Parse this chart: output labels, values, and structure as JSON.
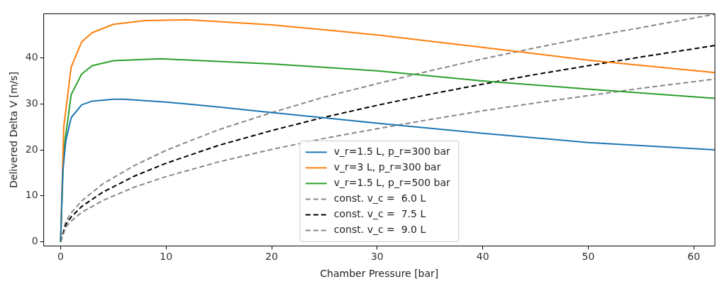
{
  "chart_data": {
    "type": "line",
    "xlabel": "Chamber Pressure [bar]",
    "ylabel": "Delivered Delta V [m/s]",
    "xlim": [
      -1.6,
      62
    ],
    "ylim": [
      -0.9,
      49.6
    ],
    "xticks": [
      0,
      10,
      20,
      30,
      40,
      50,
      60
    ],
    "yticks": [
      0,
      10,
      20,
      30,
      40
    ],
    "grid": false,
    "legend": "bottom",
    "marker": "none",
    "series": [
      {
        "name": "v_r=1.5 L, p_r=300 bar",
        "color": "#1f77b4",
        "line_style": "solid",
        "x": [
          0,
          0.2,
          0.5,
          1,
          2,
          3,
          5,
          6,
          10,
          15,
          20,
          30,
          40,
          50,
          62
        ],
        "values": [
          0,
          15,
          22,
          27,
          29.8,
          30.6,
          31,
          31,
          30.4,
          29.3,
          28.1,
          25.8,
          23.6,
          21.6,
          20.0
        ]
      },
      {
        "name": "v_r=3 L, p_r=300 bar",
        "color": "#ff7f0e",
        "line_style": "solid",
        "x": [
          0,
          0.3,
          1,
          2,
          3,
          5,
          8,
          12,
          20,
          30,
          40,
          50,
          62
        ],
        "values": [
          0,
          25,
          38,
          43.5,
          45.5,
          47.3,
          48.1,
          48.3,
          47.2,
          45,
          42.3,
          39.5,
          36.8
        ]
      },
      {
        "name": "v_r=1.5 L, p_r=500 bar",
        "color": "#2ca02c",
        "line_style": "solid",
        "x": [
          0,
          0.3,
          1,
          2,
          3,
          5,
          9.5,
          20,
          30,
          40,
          50,
          62
        ],
        "values": [
          0,
          20,
          32,
          36.5,
          38.3,
          39.4,
          39.8,
          38.7,
          37.2,
          35,
          33.2,
          31.2
        ]
      },
      {
        "name": "const. v_c =  6.0 L",
        "color": "#888888",
        "line_style": "dashed",
        "x": [
          0,
          0.5,
          1,
          2,
          4,
          7,
          10,
          15,
          20,
          25,
          30,
          35,
          40,
          45,
          50,
          55,
          62
        ],
        "values": [
          0,
          3.2,
          4.5,
          6.4,
          9.0,
          11.9,
          14.2,
          17.4,
          20.1,
          22.5,
          24.6,
          26.6,
          28.5,
          30.2,
          31.8,
          33.4,
          35.4
        ]
      },
      {
        "name": "const. v_c =  7.5 L",
        "color": "#000000",
        "line_style": "dashed",
        "x": [
          0,
          0.5,
          1,
          2,
          4,
          7,
          10,
          15,
          20,
          25,
          30,
          35,
          40,
          45,
          50,
          55,
          62
        ],
        "values": [
          0,
          3.8,
          5.4,
          7.7,
          10.8,
          14.3,
          17.1,
          21.0,
          24.2,
          27.1,
          29.7,
          32.1,
          34.3,
          36.4,
          38.3,
          40.2,
          42.7
        ]
      },
      {
        "name": "const. v_c =  9.0 L",
        "color": "#888888",
        "line_style": "dashed",
        "x": [
          0,
          0.5,
          1,
          2,
          4,
          7,
          10,
          15,
          20,
          25,
          30,
          35,
          40,
          45,
          50,
          55,
          62
        ],
        "values": [
          0,
          4.4,
          6.3,
          8.9,
          12.6,
          16.6,
          19.9,
          24.4,
          28.1,
          31.5,
          34.4,
          37.2,
          39.8,
          42.2,
          44.5,
          46.6,
          49.5
        ]
      }
    ]
  }
}
